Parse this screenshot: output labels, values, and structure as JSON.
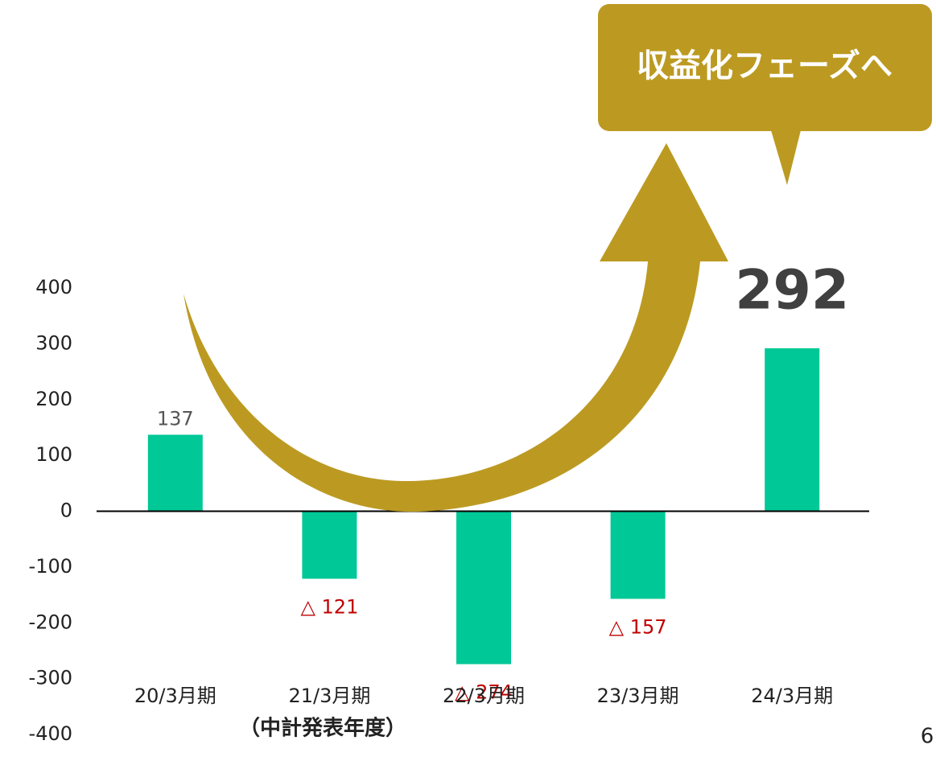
{
  "chart_data": {
    "type": "bar",
    "categories": [
      "20/3月期",
      "21/3月期",
      "22/3月期",
      "23/3月期",
      "24/3月期"
    ],
    "category_note": "（中計発表年度）",
    "values": [
      137,
      -121,
      -274,
      -157,
      292
    ],
    "value_labels": [
      "137",
      "△ 121",
      "△ 274",
      "△ 157",
      "292"
    ],
    "color": "#00c896",
    "ylim": [
      -400,
      400
    ],
    "yticks": [
      -400,
      -300,
      -200,
      -100,
      0,
      100,
      200,
      300,
      400
    ],
    "grid": false,
    "callout": "収益化フェーズへ",
    "page_number": "6"
  }
}
